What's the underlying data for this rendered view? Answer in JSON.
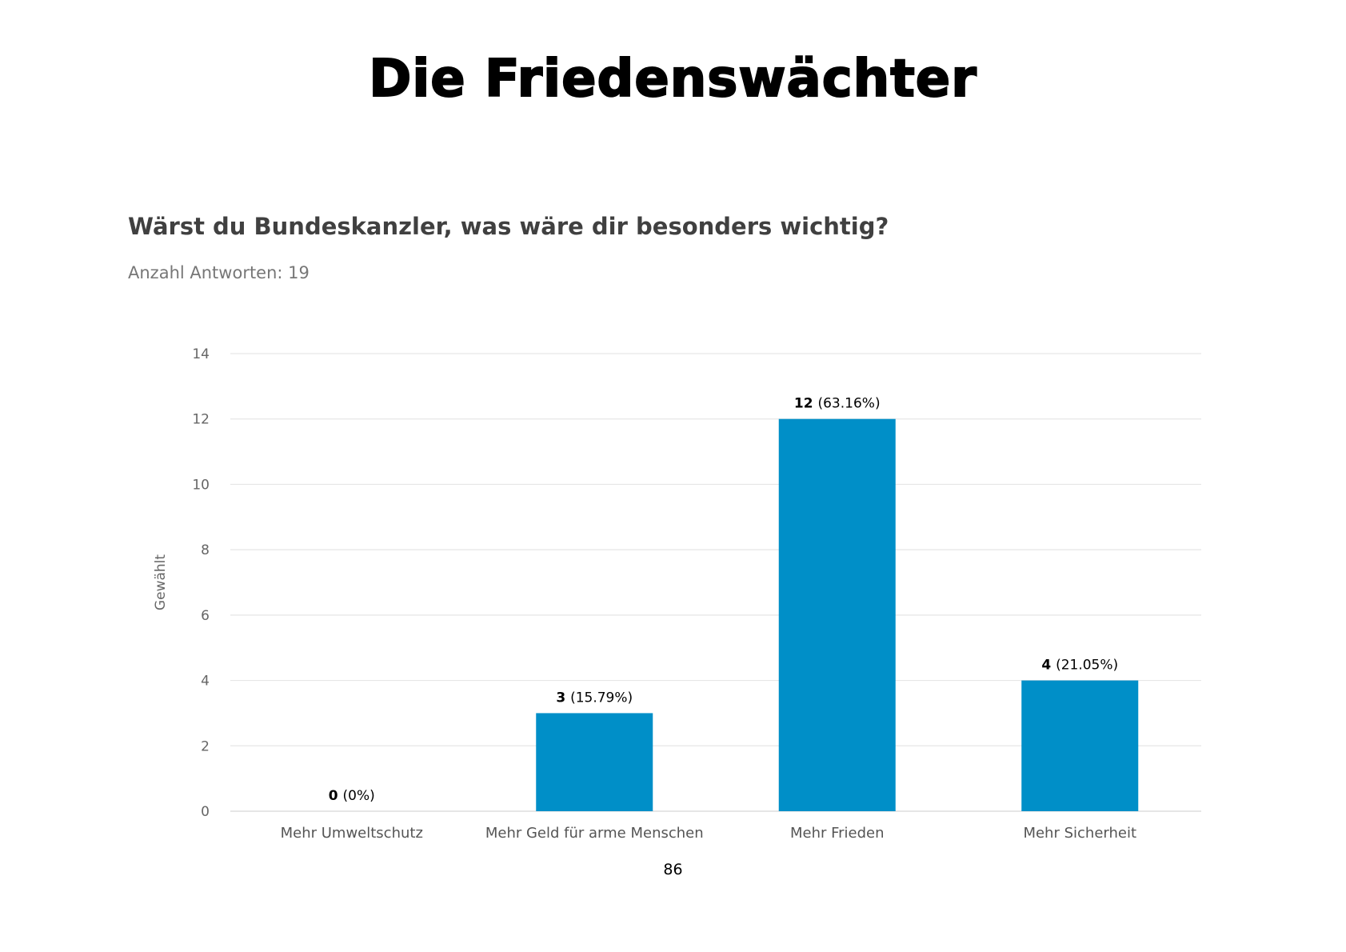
{
  "document": {
    "title": "Die Friedenswächter",
    "page_number": "86"
  },
  "question": {
    "title": "Wärst du Bundeskanzler, was wäre dir besonders wichtig?",
    "subtitle": "Anzahl Antworten: 19"
  },
  "chart_data": {
    "type": "bar",
    "title": "Wärst du Bundeskanzler, was wäre dir besonders wichtig?",
    "xlabel": "",
    "ylabel": "Gewählt",
    "ylim": [
      0,
      14
    ],
    "yticks": [
      0,
      2,
      4,
      6,
      8,
      10,
      12,
      14
    ],
    "grid": true,
    "categories": [
      "Mehr Umweltschutz",
      "Mehr Geld für arme Menschen",
      "Mehr Frieden",
      "Mehr Sicherheit"
    ],
    "values": [
      0,
      3,
      12,
      4
    ],
    "data_labels": [
      {
        "count": "0",
        "percent": "(0%)"
      },
      {
        "count": "3",
        "percent": "(15.79%)"
      },
      {
        "count": "12",
        "percent": "(63.16%)"
      },
      {
        "count": "4",
        "percent": "(21.05%)"
      }
    ],
    "bar_color": "#008fc8"
  }
}
